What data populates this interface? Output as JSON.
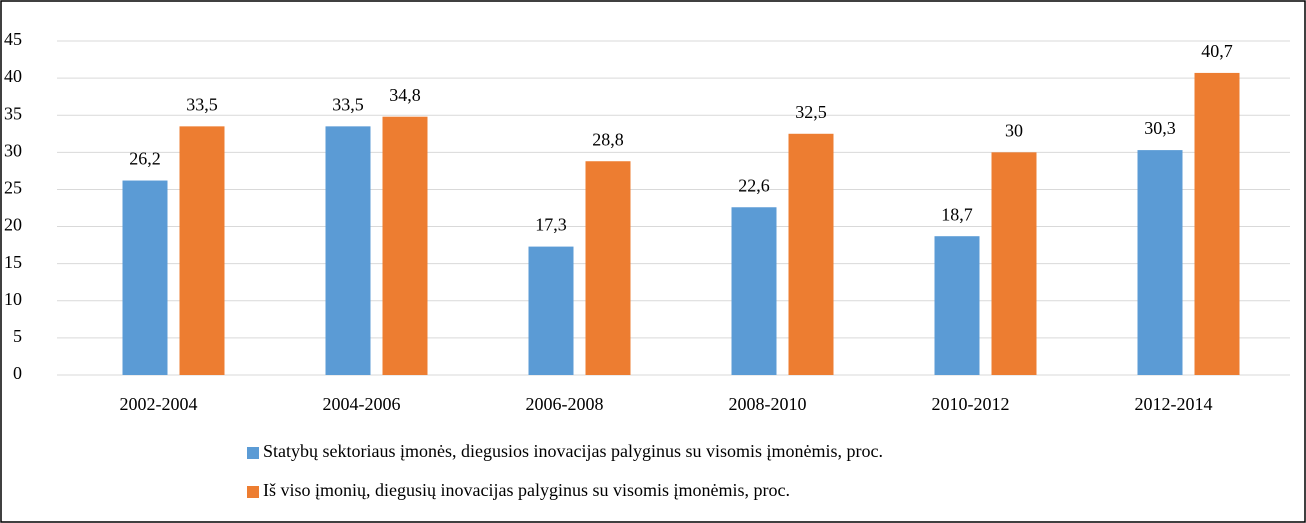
{
  "chart_data": {
    "type": "bar",
    "categories": [
      "2002-2004",
      "2004-2006",
      "2006-2008",
      "2008-2010",
      "2010-2012",
      "2012-2014"
    ],
    "series": [
      {
        "name": "Statybų sektoriaus įmonės, diegusios inovacijas palyginus su visomis įmonėmis, proc.",
        "color": "#5b9bd5",
        "values": [
          26.2,
          33.5,
          17.3,
          22.6,
          18.7,
          30.3
        ],
        "value_labels": [
          "26,2",
          "33,5",
          "17,3",
          "22,6",
          "18,7",
          "30,3"
        ]
      },
      {
        "name": "Iš viso įmonių, diegusių inovacijas palyginus su visomis įmonėmis, proc.",
        "color": "#ed7d31",
        "values": [
          33.5,
          34.8,
          28.8,
          32.5,
          30,
          40.7
        ],
        "value_labels": [
          "33,5",
          "34,8",
          "28,8",
          "32,5",
          "30",
          "40,7"
        ]
      }
    ],
    "ylim": [
      0,
      45
    ],
    "yticks": [
      0,
      5,
      10,
      15,
      20,
      25,
      30,
      35,
      40,
      45
    ],
    "grid": true,
    "legend": "bottom"
  }
}
